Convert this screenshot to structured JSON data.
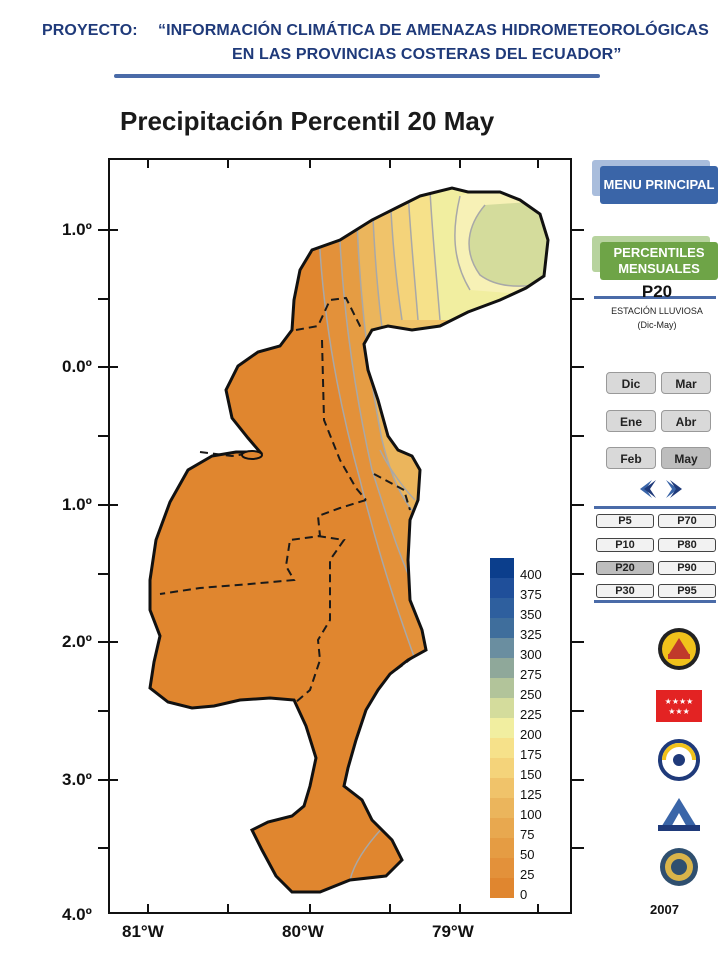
{
  "header": {
    "label": "PROYECTO:",
    "title_line1": "“INFORMACIÓN CLIMÁTICA DE AMENAZAS HIDROMETEOROLÓGICAS",
    "title_line2": "EN LAS PROVINCIAS COSTERAS DEL ECUADOR”"
  },
  "map": {
    "title": "Precipitación Percentil 20 May",
    "lat_labels": [
      "1.0º",
      "0.0º",
      "1.0º",
      "2.0º",
      "3.0º",
      "4.0º"
    ],
    "lon_labels": [
      "81°W",
      "80°W",
      "79°W"
    ],
    "legend": {
      "values": [
        "400",
        "375",
        "350",
        "325",
        "300",
        "275",
        "250",
        "225",
        "200",
        "175",
        "150",
        "125",
        "100",
        "75",
        "50",
        "25",
        "0"
      ],
      "colors": [
        "#0b3e8c",
        "#1f4f9a",
        "#2e5f9e",
        "#3f6e9c",
        "#6a8ea0",
        "#8fa89a",
        "#b2c49a",
        "#d4dc9c",
        "#f1eea0",
        "#f6e18a",
        "#f4d37a",
        "#f0c36a",
        "#ebb55c",
        "#e8a84f",
        "#e59c43",
        "#e3913a",
        "#e0862f"
      ]
    }
  },
  "menu": {
    "main_label": "MENU PRINCIPAL",
    "percentiles_label": "PERCENTILES MENSUALES",
    "colors": {
      "main": "#3a65a8",
      "percentiles": "#6ea447"
    }
  },
  "panel": {
    "percentile": "P20",
    "season": "ESTACIÓN LLUVIOSA",
    "range": "(Dic-May)",
    "months": [
      {
        "label": "Dic",
        "active": false
      },
      {
        "label": "Mar",
        "active": false
      },
      {
        "label": "Ene",
        "active": false
      },
      {
        "label": "Abr",
        "active": false
      },
      {
        "label": "Feb",
        "active": false
      },
      {
        "label": "May",
        "active": true
      }
    ],
    "percentiles": [
      {
        "label": "P5",
        "active": false
      },
      {
        "label": "P70",
        "active": false
      },
      {
        "label": "P10",
        "active": false
      },
      {
        "label": "P80",
        "active": false
      },
      {
        "label": "P20",
        "active": true
      },
      {
        "label": "P90",
        "active": false
      },
      {
        "label": "P30",
        "active": false
      },
      {
        "label": "P95",
        "active": false
      }
    ],
    "year": "2007"
  }
}
